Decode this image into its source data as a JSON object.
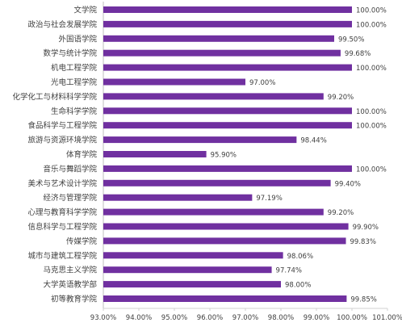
{
  "chart_data": {
    "type": "bar",
    "orientation": "horizontal",
    "categories": [
      "文学院",
      "政治与社会发展学院",
      "外国语学院",
      "数学与统计学院",
      "机电工程学院",
      "光电工程学院",
      "化学化工与材料科学学院",
      "生命科学学院",
      "食品科学与工程学院",
      "旅游与资源环境学院",
      "体育学院",
      "音乐与舞蹈学院",
      "美术与艺术设计学院",
      "经济与管理学院",
      "心理与教育科学学院",
      "信息科学与工程学院",
      "传媒学院",
      "城市与建筑工程学院",
      "马克思主义学院",
      "大学英语教学部",
      "初等教育学院"
    ],
    "values": [
      100.0,
      100.0,
      99.5,
      99.68,
      100.0,
      97.0,
      99.2,
      100.0,
      100.0,
      98.44,
      95.9,
      100.0,
      99.4,
      97.19,
      99.2,
      99.9,
      99.83,
      98.06,
      97.74,
      98.0,
      99.85
    ],
    "data_labels": [
      "100.00%",
      "100.00%",
      "99.50%",
      "99.68%",
      "100.00%",
      "97.00%",
      "99.20%",
      "100.00%",
      "100.00%",
      "98.44%",
      "95.90%",
      "100.00%",
      "99.40%",
      "97.19%",
      "99.20%",
      "99.90%",
      "99.83%",
      "98.06%",
      "97.74%",
      "98.00%",
      "99.85%"
    ],
    "xlim": [
      93.0,
      101.0
    ],
    "x_ticks": [
      93,
      94,
      95,
      96,
      97,
      98,
      99,
      100,
      101
    ],
    "x_tick_labels": [
      "93.00%",
      "94.00%",
      "95.00%",
      "96.00%",
      "97.00%",
      "98.00%",
      "99.00%",
      "100.00%",
      "101.00%"
    ],
    "bar_color": "#7030A0",
    "grid": false,
    "legend": "none"
  }
}
